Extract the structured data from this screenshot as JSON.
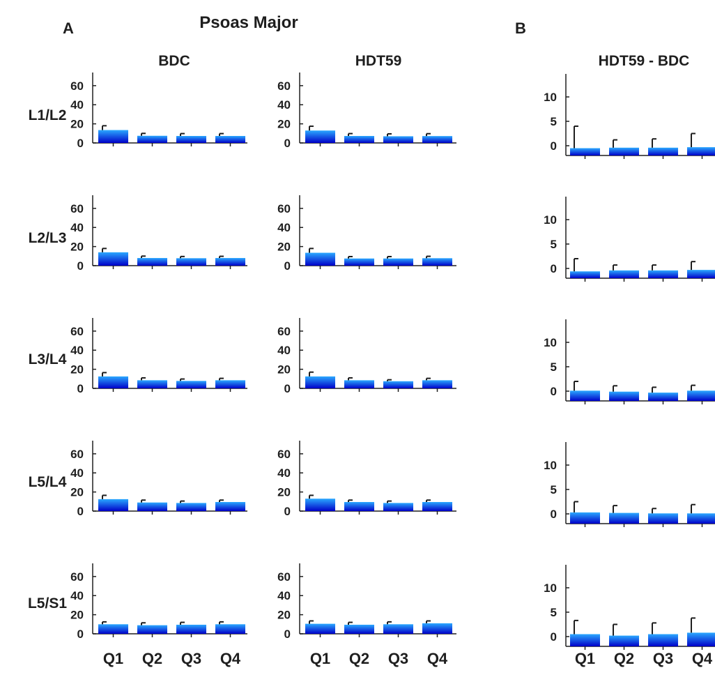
{
  "figure": {
    "panel_a_label": "A",
    "panel_b_label": "B",
    "title": "Psoas Major",
    "colors": {
      "bar_top": "#2aa8ff",
      "bar_bottom": "#0000c8",
      "axis": "#1e1e1e",
      "text": "#1e1e1e"
    }
  },
  "chart_data": [
    {
      "type": "bar",
      "panel": "A",
      "column_title": "BDC",
      "categories": [
        "Q1",
        "Q2",
        "Q3",
        "Q4"
      ],
      "ylim": [
        0,
        65
      ],
      "yticks": [
        "0",
        "20",
        "40",
        "60"
      ],
      "rows": [
        {
          "label": "L1/L2",
          "values": [
            13.5,
            7.5,
            7.3,
            7.3
          ],
          "errors": [
            4.5,
            2.5,
            2.5,
            2.5
          ]
        },
        {
          "label": "L2/L3",
          "values": [
            14,
            8,
            7.8,
            8
          ],
          "errors": [
            4,
            2,
            1.8,
            1.8
          ]
        },
        {
          "label": "L3/L4",
          "values": [
            12.5,
            8.5,
            7.8,
            8.5
          ],
          "errors": [
            4,
            2.5,
            2,
            2
          ]
        },
        {
          "label": "L5/L4",
          "values": [
            12.5,
            9,
            8.5,
            9.5
          ],
          "errors": [
            4,
            2.5,
            2,
            2
          ]
        },
        {
          "label": "L5/S1",
          "values": [
            10,
            9,
            9.5,
            10
          ],
          "errors": [
            2.5,
            2.5,
            2.5,
            2.5
          ]
        }
      ]
    },
    {
      "type": "bar",
      "panel": "A",
      "column_title": "HDT59",
      "categories": [
        "Q1",
        "Q2",
        "Q3",
        "Q4"
      ],
      "ylim": [
        0,
        65
      ],
      "yticks": [
        "0",
        "20",
        "40",
        "60"
      ],
      "rows": [
        {
          "label": "L1/L2",
          "values": [
            13,
            7.3,
            7,
            7.2
          ],
          "errors": [
            4.5,
            2.5,
            2.5,
            2.5
          ]
        },
        {
          "label": "L2/L3",
          "values": [
            13.5,
            7.5,
            7.5,
            7.8
          ],
          "errors": [
            4.5,
            2,
            2,
            2
          ]
        },
        {
          "label": "L3/L4",
          "values": [
            12.5,
            8.5,
            7.5,
            8.5
          ],
          "errors": [
            4.5,
            2.5,
            1.5,
            2
          ]
        },
        {
          "label": "L5/L4",
          "values": [
            13,
            9.5,
            8.5,
            9.5
          ],
          "errors": [
            3.5,
            2,
            2,
            2
          ]
        },
        {
          "label": "L5/S1",
          "values": [
            10.5,
            9.5,
            10,
            11
          ],
          "errors": [
            3,
            2.5,
            2.5,
            2.5
          ]
        }
      ]
    },
    {
      "type": "bar",
      "panel": "B",
      "column_title": "HDT59 - BDC",
      "categories": [
        "Q1",
        "Q2",
        "Q3",
        "Q4"
      ],
      "ylim": [
        -2,
        13
      ],
      "yticks": [
        "0",
        "5",
        "10"
      ],
      "rows": [
        {
          "label": "L1/L2",
          "values": [
            -0.5,
            -0.4,
            -0.4,
            -0.3
          ],
          "errors": [
            4.5,
            1.6,
            1.8,
            2.8
          ]
        },
        {
          "label": "L2/L3",
          "values": [
            -0.6,
            -0.4,
            -0.4,
            -0.3
          ],
          "errors": [
            2.6,
            1.1,
            1.1,
            1.7
          ]
        },
        {
          "label": "L3/L4",
          "values": [
            0.1,
            -0.1,
            -0.3,
            0.1
          ],
          "errors": [
            1.9,
            1.2,
            1.1,
            1.1
          ]
        },
        {
          "label": "L5/L4",
          "values": [
            0.3,
            0.2,
            0.1,
            0.1
          ],
          "errors": [
            2.2,
            1.5,
            1.0,
            1.8
          ]
        },
        {
          "label": "L5/S1",
          "values": [
            0.5,
            0.2,
            0.5,
            0.8
          ],
          "errors": [
            2.8,
            2.3,
            2.3,
            3.0
          ]
        }
      ]
    }
  ]
}
